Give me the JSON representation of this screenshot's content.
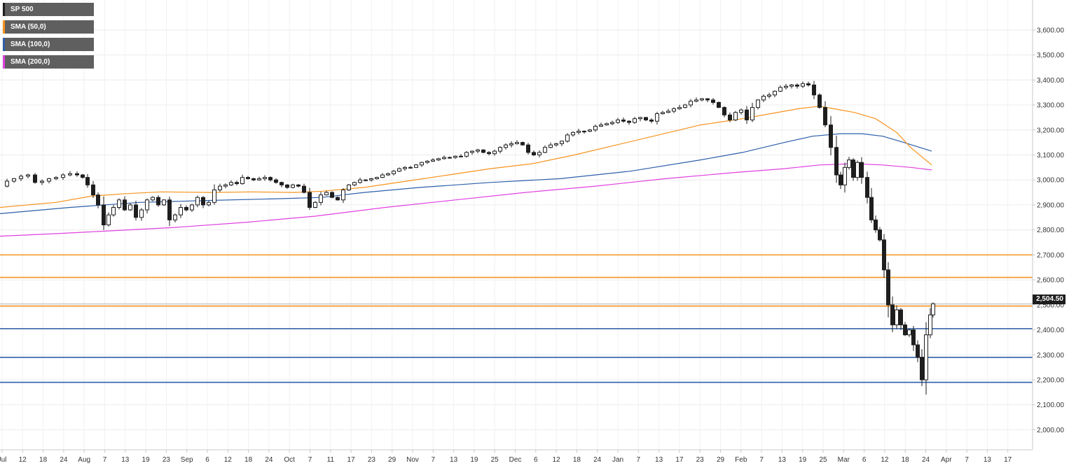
{
  "chart_data": {
    "type": "candlestick",
    "instrument": "SP 500",
    "ylim": [
      1920,
      3720
    ],
    "y_ticks": [
      "2,000.00",
      "2,100.00",
      "2,200.00",
      "2,300.00",
      "2,400.00",
      "2,500.00",
      "2,600.00",
      "2,700.00",
      "2,800.00",
      "2,900.00",
      "3,000.00",
      "3,100.00",
      "3,200.00",
      "3,300.00",
      "3,400.00",
      "3,500.00",
      "3,600.00"
    ],
    "y_tick_values": [
      2000,
      2100,
      2200,
      2300,
      2400,
      2500,
      2600,
      2700,
      2800,
      2900,
      3000,
      3100,
      3200,
      3300,
      3400,
      3500,
      3600
    ],
    "x_ticks": [
      "Jul",
      "12",
      "18",
      "24",
      "Aug",
      "7",
      "13",
      "19",
      "23",
      "Sep",
      "6",
      "12",
      "18",
      "24",
      "Oct",
      "7",
      "11",
      "17",
      "23",
      "29",
      "Nov",
      "7",
      "13",
      "19",
      "25",
      "Dec",
      "6",
      "12",
      "18",
      "24",
      "Jan",
      "7",
      "13",
      "17",
      "23",
      "29",
      "Feb",
      "7",
      "13",
      "19",
      "25",
      "Mar",
      "6",
      "12",
      "18",
      "24",
      "Apr",
      "7",
      "13",
      "17"
    ],
    "last_price": "2,504.50",
    "legend": [
      {
        "label": "SP 500",
        "color": "#1e1e1e"
      },
      {
        "label": "SMA (50,0)",
        "color": "#f7931e"
      },
      {
        "label": "SMA (100,0)",
        "color": "#2d5faa"
      },
      {
        "label": "SMA (200,0)",
        "color": "#e040e0"
      }
    ],
    "horizontal_levels": [
      {
        "value": 2700,
        "color": "#f7931e"
      },
      {
        "value": 2610,
        "color": "#f7931e"
      },
      {
        "value": 2495,
        "color": "#f7931e"
      },
      {
        "value": 2405,
        "color": "#2d5faa"
      },
      {
        "value": 2290,
        "color": "#2d5faa"
      },
      {
        "value": 2190,
        "color": "#2d5faa"
      }
    ],
    "price_path": [
      [
        0,
        2975
      ],
      [
        10,
        2995
      ],
      [
        20,
        3005
      ],
      [
        30,
        3015
      ],
      [
        40,
        3020
      ],
      [
        50,
        2990
      ],
      [
        60,
        2995
      ],
      [
        70,
        3005
      ],
      [
        80,
        3010
      ],
      [
        90,
        3020
      ],
      [
        100,
        3025
      ],
      [
        110,
        3020
      ],
      [
        118,
        3010
      ],
      [
        125,
        2980
      ],
      [
        133,
        2940
      ],
      [
        140,
        2900
      ],
      [
        148,
        2820
      ],
      [
        155,
        2860
      ],
      [
        162,
        2890
      ],
      [
        170,
        2920
      ],
      [
        178,
        2880
      ],
      [
        186,
        2900
      ],
      [
        194,
        2850
      ],
      [
        202,
        2880
      ],
      [
        210,
        2920
      ],
      [
        218,
        2930
      ],
      [
        226,
        2900
      ],
      [
        234,
        2920
      ],
      [
        242,
        2840
      ],
      [
        250,
        2860
      ],
      [
        258,
        2890
      ],
      [
        266,
        2880
      ],
      [
        274,
        2900
      ],
      [
        282,
        2930
      ],
      [
        290,
        2900
      ],
      [
        298,
        2910
      ],
      [
        306,
        2960
      ],
      [
        314,
        2975
      ],
      [
        322,
        2980
      ],
      [
        330,
        2990
      ],
      [
        338,
        2985
      ],
      [
        346,
        3010
      ],
      [
        354,
        3005
      ],
      [
        362,
        3000
      ],
      [
        370,
        3005
      ],
      [
        378,
        3010
      ],
      [
        386,
        3000
      ],
      [
        394,
        2990
      ],
      [
        402,
        2980
      ],
      [
        410,
        2970
      ],
      [
        418,
        2980
      ],
      [
        426,
        2975
      ],
      [
        434,
        2950
      ],
      [
        442,
        2890
      ],
      [
        450,
        2910
      ],
      [
        458,
        2940
      ],
      [
        466,
        2950
      ],
      [
        474,
        2930
      ],
      [
        482,
        2920
      ],
      [
        490,
        2960
      ],
      [
        498,
        2980
      ],
      [
        506,
        2990
      ],
      [
        514,
        3000
      ],
      [
        522,
        3000
      ],
      [
        530,
        3005
      ],
      [
        538,
        3010
      ],
      [
        546,
        3020
      ],
      [
        554,
        3025
      ],
      [
        562,
        3035
      ],
      [
        570,
        3045
      ],
      [
        578,
        3050
      ],
      [
        586,
        3050
      ],
      [
        594,
        3060
      ],
      [
        602,
        3070
      ],
      [
        610,
        3075
      ],
      [
        618,
        3080
      ],
      [
        626,
        3085
      ],
      [
        634,
        3090
      ],
      [
        642,
        3090
      ],
      [
        650,
        3095
      ],
      [
        658,
        3095
      ],
      [
        666,
        3110
      ],
      [
        674,
        3115
      ],
      [
        682,
        3120
      ],
      [
        690,
        3110
      ],
      [
        698,
        3105
      ],
      [
        706,
        3115
      ],
      [
        714,
        3130
      ],
      [
        722,
        3140
      ],
      [
        730,
        3145
      ],
      [
        738,
        3150
      ],
      [
        746,
        3140
      ],
      [
        754,
        3110
      ],
      [
        762,
        3100
      ],
      [
        770,
        3110
      ],
      [
        778,
        3130
      ],
      [
        786,
        3140
      ],
      [
        794,
        3145
      ],
      [
        802,
        3155
      ],
      [
        810,
        3180
      ],
      [
        818,
        3190
      ],
      [
        826,
        3195
      ],
      [
        834,
        3195
      ],
      [
        842,
        3200
      ],
      [
        850,
        3215
      ],
      [
        858,
        3220
      ],
      [
        866,
        3225
      ],
      [
        874,
        3230
      ],
      [
        882,
        3240
      ],
      [
        890,
        3235
      ],
      [
        898,
        3230
      ],
      [
        906,
        3245
      ],
      [
        914,
        3250
      ],
      [
        922,
        3240
      ],
      [
        930,
        3235
      ],
      [
        938,
        3265
      ],
      [
        946,
        3270
      ],
      [
        954,
        3275
      ],
      [
        962,
        3285
      ],
      [
        970,
        3290
      ],
      [
        978,
        3300
      ],
      [
        986,
        3315
      ],
      [
        994,
        3320
      ],
      [
        1002,
        3325
      ],
      [
        1010,
        3320
      ],
      [
        1018,
        3310
      ],
      [
        1026,
        3290
      ],
      [
        1034,
        3260
      ],
      [
        1042,
        3240
      ],
      [
        1050,
        3270
      ],
      [
        1058,
        3280
      ],
      [
        1066,
        3240
      ],
      [
        1074,
        3290
      ],
      [
        1082,
        3320
      ],
      [
        1090,
        3335
      ],
      [
        1098,
        3340
      ],
      [
        1106,
        3355
      ],
      [
        1114,
        3370
      ],
      [
        1122,
        3375
      ],
      [
        1130,
        3380
      ],
      [
        1138,
        3375
      ],
      [
        1146,
        3385
      ],
      [
        1154,
        3380
      ],
      [
        1162,
        3340
      ],
      [
        1170,
        3290
      ],
      [
        1178,
        3220
      ],
      [
        1186,
        3130
      ],
      [
        1194,
        3020
      ],
      [
        1200,
        2980
      ],
      [
        1206,
        3050
      ],
      [
        1212,
        3080
      ],
      [
        1218,
        3010
      ],
      [
        1224,
        3070
      ],
      [
        1230,
        3010
      ],
      [
        1238,
        2930
      ],
      [
        1244,
        2840
      ],
      [
        1250,
        2800
      ],
      [
        1256,
        2760
      ],
      [
        1262,
        2640
      ],
      [
        1268,
        2500
      ],
      [
        1274,
        2420
      ],
      [
        1280,
        2480
      ],
      [
        1286,
        2420
      ],
      [
        1292,
        2380
      ],
      [
        1298,
        2400
      ],
      [
        1304,
        2340
      ],
      [
        1310,
        2290
      ],
      [
        1316,
        2200
      ],
      [
        1322,
        2380
      ],
      [
        1328,
        2460
      ],
      [
        1332,
        2504.5
      ]
    ],
    "sma50": [
      [
        0,
        2890
      ],
      [
        80,
        2910
      ],
      [
        130,
        2935
      ],
      [
        180,
        2945
      ],
      [
        230,
        2952
      ],
      [
        300,
        2950
      ],
      [
        360,
        2952
      ],
      [
        420,
        2950
      ],
      [
        460,
        2955
      ],
      [
        520,
        2970
      ],
      [
        580,
        2995
      ],
      [
        640,
        3020
      ],
      [
        700,
        3045
      ],
      [
        760,
        3065
      ],
      [
        820,
        3100
      ],
      [
        880,
        3140
      ],
      [
        940,
        3180
      ],
      [
        1000,
        3220
      ],
      [
        1060,
        3245
      ],
      [
        1100,
        3265
      ],
      [
        1140,
        3285
      ],
      [
        1170,
        3295
      ],
      [
        1190,
        3285
      ],
      [
        1220,
        3270
      ],
      [
        1250,
        3245
      ],
      [
        1280,
        3190
      ],
      [
        1300,
        3130
      ],
      [
        1330,
        3060
      ]
    ],
    "sma100": [
      [
        0,
        2865
      ],
      [
        100,
        2890
      ],
      [
        200,
        2910
      ],
      [
        300,
        2918
      ],
      [
        400,
        2925
      ],
      [
        460,
        2930
      ],
      [
        520,
        2950
      ],
      [
        600,
        2970
      ],
      [
        700,
        2990
      ],
      [
        800,
        3005
      ],
      [
        900,
        3035
      ],
      [
        1000,
        3080
      ],
      [
        1060,
        3110
      ],
      [
        1120,
        3150
      ],
      [
        1160,
        3175
      ],
      [
        1200,
        3185
      ],
      [
        1230,
        3185
      ],
      [
        1260,
        3175
      ],
      [
        1290,
        3150
      ],
      [
        1330,
        3115
      ]
    ],
    "sma200": [
      [
        0,
        2775
      ],
      [
        80,
        2785
      ],
      [
        150,
        2795
      ],
      [
        250,
        2810
      ],
      [
        350,
        2830
      ],
      [
        450,
        2855
      ],
      [
        550,
        2890
      ],
      [
        650,
        2920
      ],
      [
        750,
        2950
      ],
      [
        850,
        2975
      ],
      [
        950,
        3005
      ],
      [
        1050,
        3030
      ],
      [
        1120,
        3045
      ],
      [
        1170,
        3060
      ],
      [
        1220,
        3065
      ],
      [
        1260,
        3060
      ],
      [
        1300,
        3050
      ],
      [
        1330,
        3040
      ]
    ]
  }
}
